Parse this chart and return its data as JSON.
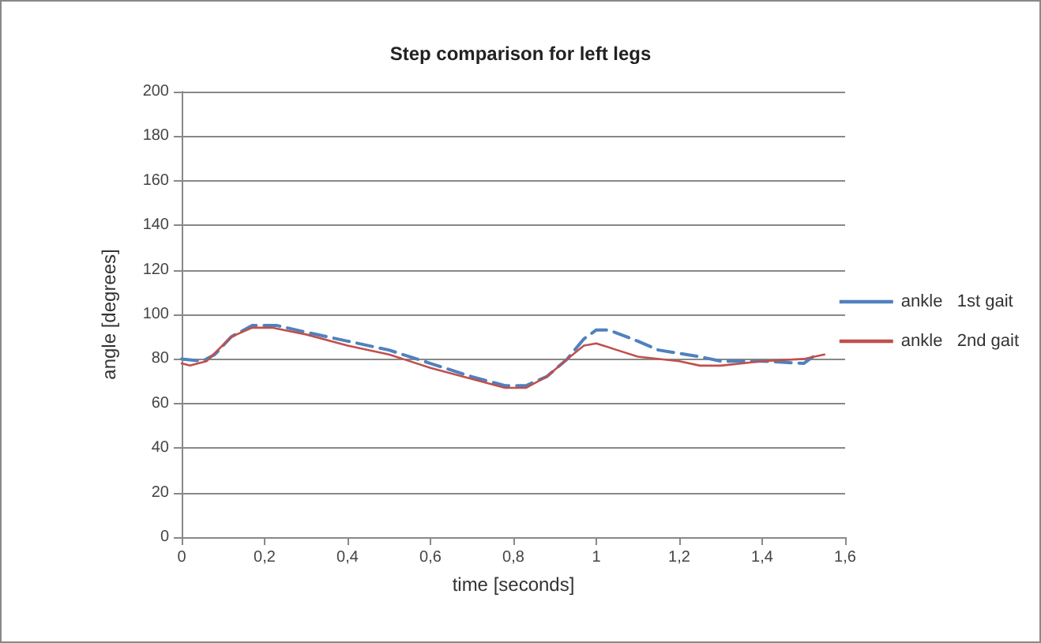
{
  "chart_data": {
    "type": "line",
    "title": "Step comparison for left legs",
    "xlabel": "time [seconds]",
    "ylabel": "angle [degrees]",
    "xlim": [
      0,
      1.6
    ],
    "xticks": [
      0,
      {
        "value": 0.2,
        "label": "0,2"
      },
      {
        "value": 0.4,
        "label": "0,4"
      },
      {
        "value": 0.6,
        "label": "0,6"
      },
      {
        "value": 0.8,
        "label": "0,8"
      },
      1,
      {
        "value": 1.2,
        "label": "1,2"
      },
      {
        "value": 1.4,
        "label": "1,4"
      },
      {
        "value": 1.6,
        "label": "1,6"
      }
    ],
    "ylim": [
      0,
      200
    ],
    "yticks": [
      0,
      20,
      40,
      60,
      80,
      100,
      120,
      140,
      160,
      180,
      200
    ],
    "grid": "y",
    "legend": "right",
    "marker": "none",
    "series": [
      {
        "name": "ankle   1st gait",
        "color": "#4f81bd",
        "line_style": "dashed",
        "x": [
          0,
          0.05,
          0.08,
          0.12,
          0.17,
          0.23,
          0.3,
          0.4,
          0.5,
          0.6,
          0.7,
          0.78,
          0.83,
          0.88,
          0.93,
          0.97,
          1.0,
          1.03,
          1.1,
          1.15,
          1.25,
          1.3,
          1.4,
          1.5,
          1.53
        ],
        "values": [
          80,
          79,
          82,
          90,
          95,
          95,
          92,
          88,
          84,
          78,
          72,
          68,
          68,
          72,
          80,
          89,
          93,
          93,
          88,
          84,
          81,
          79,
          79,
          78,
          82
        ]
      },
      {
        "name": "ankle   2nd gait",
        "color": "#c0504d",
        "line_style": "solid",
        "x": [
          0,
          0.02,
          0.06,
          0.12,
          0.17,
          0.22,
          0.3,
          0.4,
          0.5,
          0.6,
          0.7,
          0.78,
          0.83,
          0.88,
          0.93,
          0.97,
          1.0,
          1.05,
          1.1,
          1.2,
          1.25,
          1.3,
          1.4,
          1.5,
          1.55
        ],
        "values": [
          78,
          77,
          79,
          90,
          94,
          94,
          91,
          86,
          82,
          76,
          71,
          67,
          67,
          72,
          80,
          86,
          87,
          84,
          81,
          79,
          77,
          77,
          79,
          80,
          82
        ]
      }
    ]
  }
}
